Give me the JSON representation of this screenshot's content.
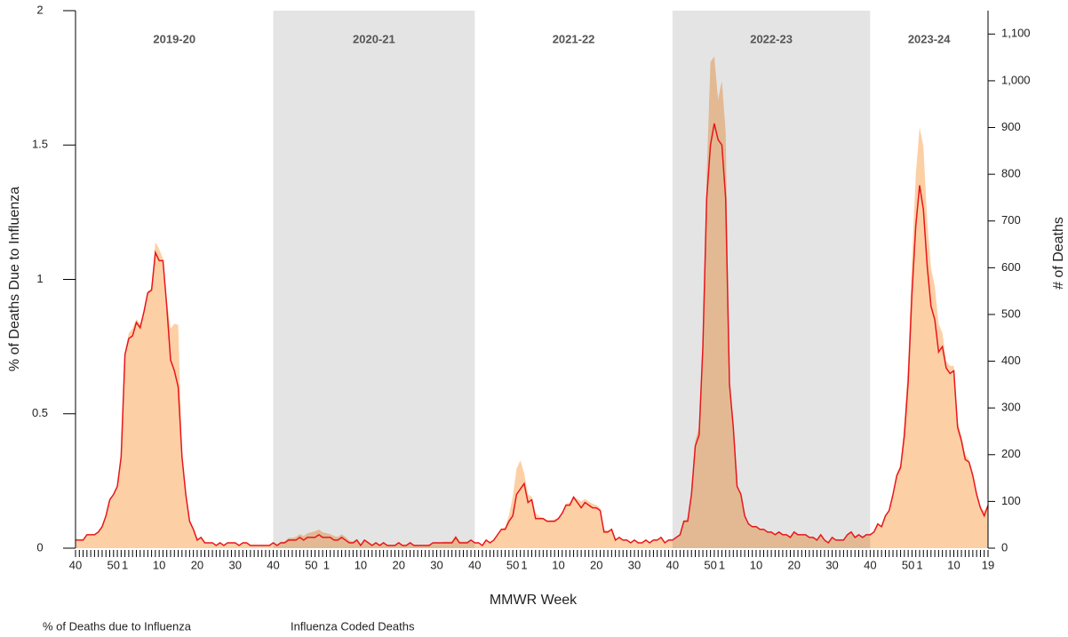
{
  "chart_data": {
    "type": "line",
    "xlabel": "MMWR Week",
    "ylabel": "% of Deaths Due to Influenza",
    "y2label": "# of Deaths",
    "seasons": [
      {
        "label": "2019-20",
        "shaded": false
      },
      {
        "label": "2020-21",
        "shaded": true
      },
      {
        "label": "2021-22",
        "shaded": false
      },
      {
        "label": "2022-23",
        "shaded": true
      },
      {
        "label": "2023-24",
        "shaded": false
      }
    ],
    "categories": [
      "40",
      null,
      null,
      null,
      null,
      null,
      null,
      null,
      null,
      null,
      "50",
      null,
      null,
      "1",
      null,
      null,
      null,
      null,
      null,
      null,
      null,
      null,
      "10",
      null,
      null,
      null,
      null,
      null,
      null,
      null,
      null,
      null,
      "20",
      null,
      null,
      null,
      null,
      null,
      null,
      null,
      null,
      null,
      "30",
      null,
      null,
      null,
      null,
      null,
      null,
      null,
      null,
      null,
      "40",
      null,
      null,
      null,
      null,
      null,
      null,
      null,
      null,
      null,
      "50",
      null,
      null,
      null,
      "1",
      null,
      null,
      null,
      null,
      null,
      null,
      null,
      null,
      "10",
      null,
      null,
      null,
      null,
      null,
      null,
      null,
      null,
      null,
      "20",
      null,
      null,
      null,
      null,
      null,
      null,
      null,
      null,
      null,
      "30",
      null,
      null,
      null,
      null,
      null,
      null,
      null,
      null,
      null,
      "40",
      null,
      null,
      null,
      null,
      null,
      null,
      null,
      null,
      null,
      "50",
      null,
      null,
      "1",
      null,
      null,
      null,
      null,
      null,
      null,
      null,
      null,
      "10",
      null,
      null,
      null,
      null,
      null,
      null,
      null,
      null,
      null,
      "20",
      null,
      null,
      null,
      null,
      null,
      null,
      null,
      null,
      null,
      "30",
      null,
      null,
      null,
      null,
      null,
      null,
      null,
      null,
      null,
      "40",
      null,
      null,
      null,
      null,
      null,
      null,
      null,
      null,
      null,
      "50",
      null,
      null,
      "1",
      null,
      null,
      null,
      null,
      null,
      null,
      null,
      null,
      "10",
      null,
      null,
      null,
      null,
      null,
      null,
      null,
      null,
      null,
      "20",
      null,
      null,
      null,
      null,
      null,
      null,
      null,
      null,
      null,
      "30",
      null,
      null,
      null,
      null,
      null,
      null,
      null,
      null,
      null,
      "40",
      null,
      null,
      null,
      null,
      null,
      null,
      null,
      null,
      null,
      "50",
      null,
      null,
      "1",
      null,
      null,
      null,
      null,
      null,
      null,
      null,
      null,
      "10",
      null,
      null,
      null,
      null,
      null,
      null,
      null,
      null,
      "19"
    ],
    "series": [
      {
        "name": "% of Deaths due to Influenza",
        "color": "#e8161b",
        "kind": "line",
        "values": [
          0.03,
          0.03,
          0.03,
          0.05,
          0.05,
          0.05,
          0.06,
          0.08,
          0.12,
          0.18,
          0.2,
          0.23,
          0.34,
          0.72,
          0.78,
          0.79,
          0.84,
          0.82,
          0.88,
          0.95,
          0.96,
          1.1,
          1.07,
          1.07,
          0.9,
          0.7,
          0.66,
          0.6,
          0.34,
          0.2,
          0.1,
          0.07,
          0.03,
          0.04,
          0.02,
          0.02,
          0.02,
          0.01,
          0.02,
          0.01,
          0.02,
          0.02,
          0.02,
          0.01,
          0.02,
          0.02,
          0.01,
          0.01,
          0.01,
          0.01,
          0.01,
          0.01,
          0.02,
          0.01,
          0.02,
          0.02,
          0.03,
          0.03,
          0.03,
          0.04,
          0.03,
          0.04,
          0.04,
          0.04,
          0.05,
          0.04,
          0.04,
          0.04,
          0.03,
          0.03,
          0.04,
          0.03,
          0.02,
          0.02,
          0.03,
          0.01,
          0.03,
          0.02,
          0.01,
          0.02,
          0.01,
          0.02,
          0.01,
          0.01,
          0.01,
          0.02,
          0.01,
          0.01,
          0.02,
          0.01,
          0.01,
          0.01,
          0.01,
          0.01,
          0.02,
          0.02,
          0.02,
          0.02,
          0.02,
          0.02,
          0.04,
          0.02,
          0.02,
          0.02,
          0.03,
          0.02,
          0.02,
          0.01,
          0.03,
          0.02,
          0.03,
          0.05,
          0.07,
          0.07,
          0.1,
          0.12,
          0.2,
          0.22,
          0.24,
          0.17,
          0.18,
          0.11,
          0.11,
          0.11,
          0.1,
          0.1,
          0.1,
          0.11,
          0.13,
          0.16,
          0.16,
          0.19,
          0.17,
          0.15,
          0.17,
          0.16,
          0.15,
          0.15,
          0.14,
          0.06,
          0.06,
          0.07,
          0.03,
          0.04,
          0.03,
          0.03,
          0.02,
          0.03,
          0.02,
          0.02,
          0.03,
          0.02,
          0.03,
          0.03,
          0.04,
          0.02,
          0.03,
          0.03,
          0.04,
          0.05,
          0.1,
          0.1,
          0.2,
          0.38,
          0.42,
          0.75,
          1.3,
          1.5,
          1.58,
          1.52,
          1.5,
          1.3,
          0.61,
          0.45,
          0.23,
          0.2,
          0.12,
          0.09,
          0.08,
          0.08,
          0.07,
          0.07,
          0.06,
          0.06,
          0.05,
          0.06,
          0.05,
          0.05,
          0.04,
          0.06,
          0.05,
          0.05,
          0.05,
          0.04,
          0.04,
          0.03,
          0.05,
          0.03,
          0.02,
          0.04,
          0.03,
          0.03,
          0.03,
          0.05,
          0.06,
          0.04,
          0.05,
          0.04,
          0.05,
          0.05,
          0.06,
          0.09,
          0.08,
          0.12,
          0.14,
          0.2,
          0.27,
          0.3,
          0.42,
          0.62,
          0.95,
          1.2,
          1.35,
          1.26,
          1.05,
          0.9,
          0.85,
          0.73,
          0.75,
          0.67,
          0.65,
          0.66,
          0.45,
          0.4,
          0.33,
          0.32,
          0.27,
          0.2,
          0.15,
          0.12,
          0.16
        ]
      },
      {
        "name": "Influenza Coded Deaths",
        "color": "#fcc38f",
        "kind": "area",
        "axis": "y2",
        "values": [
          15,
          16,
          17,
          28,
          28,
          30,
          35,
          45,
          70,
          105,
          115,
          130,
          195,
          420,
          460,
          470,
          490,
          480,
          505,
          550,
          555,
          655,
          640,
          620,
          530,
          470,
          480,
          478,
          200,
          110,
          55,
          40,
          18,
          22,
          12,
          12,
          12,
          7,
          12,
          7,
          12,
          12,
          12,
          7,
          12,
          12,
          7,
          7,
          7,
          7,
          7,
          7,
          12,
          7,
          14,
          14,
          22,
          22,
          24,
          30,
          26,
          32,
          34,
          36,
          40,
          34,
          32,
          30,
          26,
          24,
          30,
          24,
          16,
          14,
          20,
          8,
          18,
          14,
          8,
          12,
          8,
          12,
          7,
          7,
          7,
          12,
          7,
          7,
          12,
          7,
          7,
          7,
          7,
          8,
          12,
          12,
          12,
          14,
          14,
          14,
          28,
          14,
          14,
          14,
          18,
          12,
          12,
          7,
          18,
          12,
          18,
          30,
          42,
          45,
          70,
          110,
          170,
          188,
          160,
          115,
          110,
          75,
          68,
          65,
          60,
          60,
          62,
          65,
          78,
          95,
          98,
          110,
          105,
          100,
          105,
          100,
          95,
          92,
          85,
          40,
          38,
          40,
          20,
          24,
          18,
          18,
          12,
          18,
          12,
          12,
          18,
          12,
          18,
          18,
          24,
          12,
          18,
          18,
          24,
          30,
          60,
          62,
          120,
          230,
          260,
          450,
          800,
          1040,
          1052,
          960,
          1000,
          890,
          360,
          260,
          130,
          110,
          70,
          52,
          46,
          46,
          40,
          40,
          35,
          35,
          29,
          35,
          29,
          29,
          23,
          35,
          29,
          29,
          29,
          23,
          23,
          17,
          29,
          17,
          12,
          23,
          17,
          17,
          17,
          29,
          35,
          23,
          29,
          23,
          29,
          29,
          35,
          52,
          46,
          70,
          80,
          120,
          160,
          180,
          270,
          400,
          620,
          800,
          900,
          860,
          700,
          600,
          560,
          480,
          460,
          400,
          390,
          390,
          270,
          240,
          200,
          190,
          160,
          120,
          85,
          80,
          90
        ]
      }
    ],
    "ylim": [
      0,
      2
    ],
    "yticks": [
      0,
      0.5,
      1,
      1.5,
      2
    ],
    "y2lim": [
      0,
      1150
    ],
    "y2ticks": [
      0,
      100,
      200,
      300,
      400,
      500,
      600,
      700,
      800,
      900,
      {
        "value": 1000,
        "label": "1,000"
      },
      {
        "value": 1100,
        "label": "1,100"
      }
    ],
    "shade_color": "#e4e4e4"
  }
}
